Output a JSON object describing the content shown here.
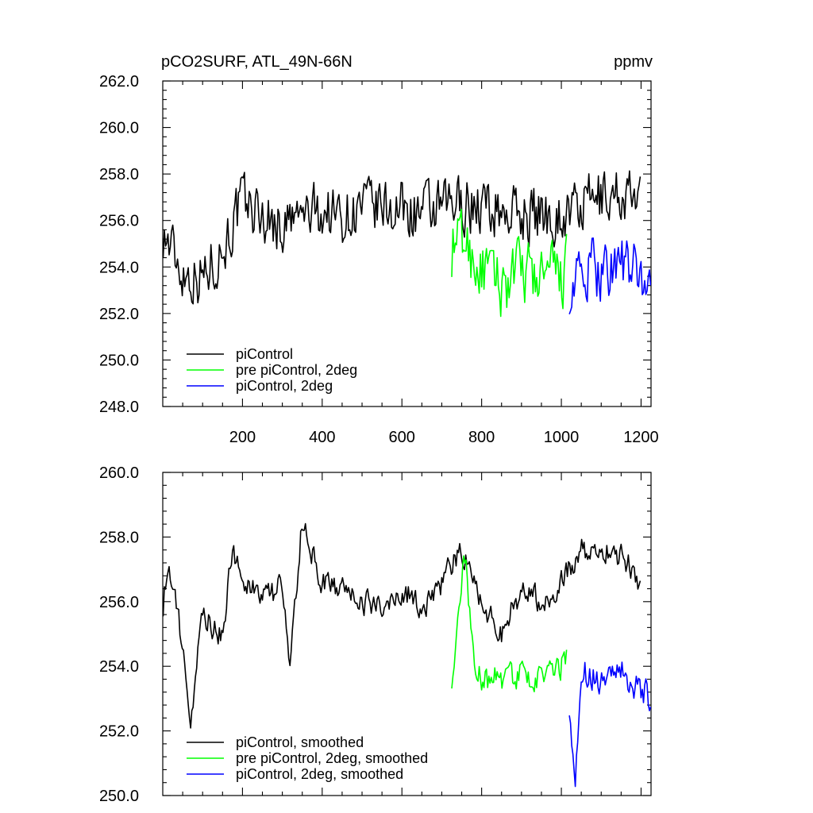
{
  "figure": {
    "title_left": "pCO2SURF, ATL_49N-66N",
    "title_right": "ppmv"
  },
  "colors": {
    "piControl": "#000000",
    "pre_piControl_2deg": "#00ff00",
    "piControl_2deg": "#0000ff"
  },
  "chart_data": [
    {
      "type": "line",
      "panel": "top",
      "title": "pCO2SURF, ATL_49N-66N",
      "units": "ppmv",
      "xlim": [
        0,
        1225
      ],
      "ylim": [
        248,
        262
      ],
      "x_ticks": [
        200,
        400,
        600,
        800,
        1000,
        1200
      ],
      "x_tick_labels": [
        "200",
        "400",
        "600",
        "800",
        "1000",
        "1200"
      ],
      "y_ticks": [
        248,
        250,
        252,
        254,
        256,
        258,
        260,
        262
      ],
      "y_tick_labels": [
        "248.0",
        "250.0",
        "252.0",
        "254.0",
        "256.0",
        "258.0",
        "260.0",
        "262.0"
      ],
      "grid": false,
      "legend_position": "bottom-left",
      "series": [
        {
          "name": "piControl",
          "color": "#000000",
          "x": [
            1,
            50,
            100,
            150,
            200,
            250,
            300,
            350,
            400,
            450,
            500,
            550,
            600,
            650,
            700,
            750,
            800,
            850,
            900,
            950,
            1000,
            1050,
            1100,
            1150,
            1200
          ],
          "values": [
            255.5,
            253.8,
            253.6,
            254.8,
            256.8,
            256.2,
            255.7,
            256.2,
            256.4,
            256.2,
            256.5,
            256.5,
            256.5,
            256.3,
            256.4,
            256.8,
            256.6,
            256.4,
            256.3,
            256.3,
            256.2,
            256.6,
            257.0,
            257.2,
            256.6
          ]
        },
        {
          "name": "pre piControl, 2deg",
          "color": "#00ff00",
          "x": [
            725,
            750,
            800,
            850,
            900,
            950,
            1000,
            1015
          ],
          "values": [
            254.8,
            255.2,
            253.8,
            253.2,
            253.8,
            253.5,
            253.6,
            254.0
          ]
        },
        {
          "name": "piControl, 2deg",
          "color": "#0000ff",
          "x": [
            1020,
            1050,
            1100,
            1150,
            1200,
            1225
          ],
          "values": [
            253.2,
            253.5,
            254.0,
            254.2,
            253.4,
            253.8
          ]
        }
      ]
    },
    {
      "type": "line",
      "panel": "bottom",
      "xlim": [
        0,
        1225
      ],
      "ylim": [
        250,
        260
      ],
      "x_ticks": [
        200,
        400,
        600,
        800,
        1000,
        1200
      ],
      "y_ticks": [
        250,
        252,
        254,
        256,
        258,
        260
      ],
      "y_tick_labels": [
        "250.0",
        "252.0",
        "254.0",
        "256.0",
        "258.0",
        "260.0"
      ],
      "grid": false,
      "legend_position": "bottom-left",
      "series": [
        {
          "name": "piControl, smoothed",
          "color": "#000000",
          "x": [
            1,
            10,
            30,
            50,
            60,
            70,
            100,
            150,
            175,
            200,
            250,
            300,
            320,
            350,
            400,
            450,
            500,
            550,
            600,
            650,
            700,
            750,
            800,
            850,
            900,
            950,
            1000,
            1050,
            1100,
            1150,
            1200
          ],
          "values": [
            255.9,
            256.9,
            256.3,
            254.5,
            253.2,
            252.5,
            255.5,
            255.0,
            257.5,
            256.8,
            256.0,
            256.5,
            254.0,
            258.5,
            256.5,
            256.4,
            256.0,
            255.8,
            256.4,
            255.8,
            256.6,
            257.6,
            256.0,
            255.0,
            256.4,
            256.0,
            256.6,
            257.6,
            257.6,
            257.4,
            256.6
          ]
        },
        {
          "name": "pre piControl, 2deg, smoothed",
          "color": "#00ff00",
          "x": [
            725,
            745,
            760,
            780,
            800,
            850,
            900,
            950,
            1000,
            1015
          ],
          "values": [
            253.7,
            256.0,
            257.4,
            254.0,
            253.6,
            253.6,
            253.8,
            253.6,
            254.0,
            254.2
          ]
        },
        {
          "name": "piControl, 2deg, smoothed",
          "color": "#0000ff",
          "x": [
            1020,
            1035,
            1050,
            1100,
            1150,
            1200,
            1225
          ],
          "values": [
            252.9,
            250.5,
            253.8,
            253.5,
            253.8,
            253.2,
            253.0
          ]
        }
      ]
    }
  ]
}
